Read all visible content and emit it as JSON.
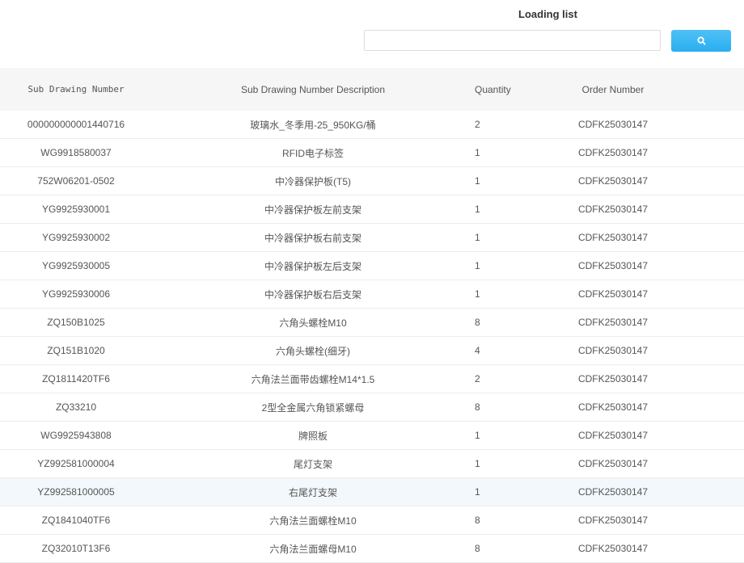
{
  "header": {
    "title": "Loading list",
    "search_placeholder": "",
    "search_icon": "search-icon",
    "button_color": "#33b3f2"
  },
  "table": {
    "columns": [
      "Sub Drawing Number",
      "Sub Drawing Number Description",
      "Quantity",
      "Order Number"
    ],
    "rows": [
      [
        "000000000001440716",
        "玻璃水_冬季用-25_950KG/桶",
        "2",
        "CDFK25030147"
      ],
      [
        "WG9918580037",
        "RFID电子标签",
        "1",
        "CDFK25030147"
      ],
      [
        "752W06201-0502",
        "中冷器保护板(T5)",
        "1",
        "CDFK25030147"
      ],
      [
        "YG9925930001",
        "中冷器保护板左前支架",
        "1",
        "CDFK25030147"
      ],
      [
        "YG9925930002",
        "中冷器保护板右前支架",
        "1",
        "CDFK25030147"
      ],
      [
        "YG9925930005",
        "中冷器保护板左后支架",
        "1",
        "CDFK25030147"
      ],
      [
        "YG9925930006",
        "中冷器保护板右后支架",
        "1",
        "CDFK25030147"
      ],
      [
        "ZQ150B1025",
        "六角头螺栓M10",
        "8",
        "CDFK25030147"
      ],
      [
        "ZQ151B1020",
        "六角头螺栓(细牙)",
        "4",
        "CDFK25030147"
      ],
      [
        "ZQ1811420TF6",
        "六角法兰面带齿螺栓M14*1.5",
        "2",
        "CDFK25030147"
      ],
      [
        "ZQ33210",
        "2型全金属六角锁紧螺母",
        "8",
        "CDFK25030147"
      ],
      [
        "WG9925943808",
        "牌照板",
        "1",
        "CDFK25030147"
      ],
      [
        "YZ992581000004",
        "尾灯支架",
        "1",
        "CDFK25030147"
      ],
      [
        "YZ992581000005",
        "右尾灯支架",
        "1",
        "CDFK25030147"
      ],
      [
        "ZQ1841040TF6",
        "六角法兰面螺栓M10",
        "8",
        "CDFK25030147"
      ],
      [
        "ZQ32010T13F6",
        "六角法兰面螺母M10",
        "8",
        "CDFK25030147"
      ]
    ],
    "highlighted_row": 13
  }
}
